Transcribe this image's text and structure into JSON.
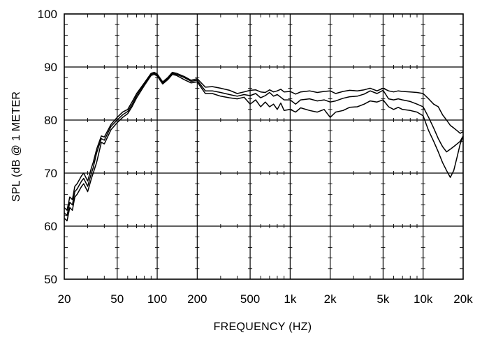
{
  "chart_data": {
    "type": "line",
    "title": "",
    "xlabel": "FREQUENCY  (HZ)",
    "ylabel": "SPL (dB @ 1 METER",
    "xscale": "log",
    "xlim": [
      20,
      20000
    ],
    "ylim": [
      50,
      100
    ],
    "grid": true,
    "legend": "none",
    "line_color": "#000000",
    "x_ticks": [
      {
        "value": 20,
        "label": "20"
      },
      {
        "value": 50,
        "label": "50"
      },
      {
        "value": 100,
        "label": "100"
      },
      {
        "value": 200,
        "label": "200"
      },
      {
        "value": 500,
        "label": "500"
      },
      {
        "value": 1000,
        "label": "1k"
      },
      {
        "value": 2000,
        "label": "2k"
      },
      {
        "value": 5000,
        "label": "5k"
      },
      {
        "value": 10000,
        "label": "10k"
      },
      {
        "value": 20000,
        "label": "20k"
      }
    ],
    "y_ticks": [
      {
        "value": 50,
        "label": "50"
      },
      {
        "value": 60,
        "label": "60"
      },
      {
        "value": 70,
        "label": "70"
      },
      {
        "value": 80,
        "label": "80"
      },
      {
        "value": 90,
        "label": "90"
      },
      {
        "value": 100,
        "label": "100"
      }
    ],
    "series": [
      {
        "x": [
          20,
          21,
          22,
          23,
          24,
          25,
          27,
          28,
          30,
          32,
          33,
          35,
          38,
          40,
          45,
          50,
          55,
          60,
          65,
          70,
          80,
          90,
          95,
          100,
          110,
          120,
          130,
          140,
          160,
          180,
          200,
          230,
          260,
          300,
          350,
          400,
          450,
          500,
          550,
          600,
          650,
          700,
          750,
          800,
          850,
          900,
          1000,
          1100,
          1200,
          1400,
          1600,
          1800,
          2000,
          2200,
          2500,
          2800,
          3200,
          3600,
          4000,
          4500,
          5000,
          5500,
          6000,
          6500,
          7000,
          8000,
          9000,
          10000,
          11000,
          12000,
          13000,
          14000,
          15000,
          16000,
          17000,
          18000,
          19000,
          20000
        ],
        "values": [
          63.5,
          63,
          65.5,
          65,
          67.5,
          68,
          69.5,
          70,
          68.5,
          71,
          72,
          74.5,
          77,
          76.8,
          79.2,
          80.5,
          81.5,
          82,
          83.5,
          85,
          87,
          88.8,
          89,
          88.7,
          87.2,
          88,
          89,
          88.8,
          88.2,
          87.5,
          87.8,
          86.2,
          86.3,
          86,
          85.6,
          85,
          85.3,
          85.6,
          85.7,
          85.3,
          85.2,
          85.7,
          85.3,
          85.5,
          85.8,
          85.3,
          85.4,
          84.9,
          85.3,
          85.5,
          85.2,
          85.4,
          85.5,
          85,
          85.4,
          85.6,
          85.5,
          85.7,
          86,
          85.5,
          86,
          85.5,
          85.3,
          85.5,
          85.4,
          85.3,
          85.2,
          85,
          84,
          83,
          82.5,
          81,
          80,
          79,
          78.5,
          78,
          77.5,
          77.8
        ]
      },
      {
        "x": [
          20,
          21,
          22,
          23,
          24,
          25,
          27,
          28,
          30,
          32,
          33,
          35,
          38,
          40,
          45,
          50,
          55,
          60,
          65,
          70,
          80,
          90,
          95,
          100,
          110,
          120,
          130,
          140,
          160,
          180,
          200,
          230,
          260,
          300,
          350,
          400,
          450,
          500,
          550,
          600,
          650,
          700,
          750,
          800,
          850,
          900,
          1000,
          1100,
          1200,
          1400,
          1600,
          1800,
          2000,
          2200,
          2500,
          2800,
          3200,
          3600,
          4000,
          4500,
          5000,
          5500,
          6000,
          6500,
          7000,
          8000,
          9000,
          10000,
          11000,
          12000,
          13000,
          14000,
          15000,
          16000,
          17000,
          18000,
          19000,
          20000
        ],
        "values": [
          62.5,
          62,
          64.5,
          64,
          66.5,
          67,
          68.5,
          69,
          67.5,
          70,
          71,
          73.8,
          76.5,
          76.2,
          78.8,
          80,
          81,
          81.6,
          83,
          84.6,
          86.8,
          88.6,
          88.8,
          88.5,
          87,
          87.8,
          88.8,
          88.6,
          88,
          87.3,
          87.5,
          85.5,
          85.5,
          85.2,
          84.8,
          84.5,
          84.8,
          84.6,
          85,
          84.2,
          84.6,
          85.2,
          84.5,
          84.8,
          84.3,
          83.8,
          83.8,
          83,
          83.8,
          84,
          83.6,
          83.8,
          83.4,
          83.6,
          84.1,
          84.4,
          84.5,
          84.9,
          85.5,
          85,
          85.6,
          84,
          83.8,
          84,
          83.8,
          83.5,
          83,
          82.5,
          80.5,
          78.5,
          76.5,
          75,
          74,
          74.5,
          75,
          75.5,
          76,
          77
        ]
      },
      {
        "x": [
          20,
          21,
          22,
          23,
          24,
          25,
          27,
          28,
          30,
          32,
          33,
          35,
          38,
          40,
          45,
          50,
          55,
          60,
          65,
          70,
          80,
          90,
          95,
          100,
          110,
          120,
          130,
          140,
          160,
          180,
          200,
          230,
          260,
          300,
          350,
          400,
          450,
          500,
          550,
          600,
          650,
          700,
          750,
          800,
          850,
          900,
          1000,
          1100,
          1200,
          1400,
          1600,
          1800,
          2000,
          2200,
          2500,
          2800,
          3200,
          3600,
          4000,
          4500,
          5000,
          5500,
          6000,
          6500,
          7000,
          8000,
          9000,
          10000,
          11000,
          12000,
          13000,
          14000,
          15000,
          16000,
          17000,
          18000,
          19000,
          20000
        ],
        "values": [
          61.5,
          61,
          63.5,
          63,
          65.5,
          66,
          67.5,
          68,
          66.5,
          69,
          70,
          72,
          75.8,
          75.5,
          78.2,
          79.5,
          80.5,
          81.2,
          82.6,
          84.2,
          86.5,
          88.4,
          88.6,
          88.3,
          86.8,
          87.6,
          88.6,
          88.4,
          87.6,
          87,
          87.2,
          85,
          85,
          84.5,
          84.2,
          84,
          84.3,
          83,
          83.8,
          82.5,
          83.4,
          82.5,
          83,
          82,
          83.2,
          81.8,
          82,
          81.5,
          82.3,
          81.8,
          81.5,
          82,
          80.5,
          81.5,
          81.8,
          82.4,
          82.5,
          83,
          83.6,
          83.4,
          83.8,
          82.5,
          82,
          82.4,
          82,
          81.8,
          81.5,
          80.8,
          78,
          76,
          74,
          72,
          70.5,
          69.2,
          70.5,
          73,
          75.5,
          77
        ]
      }
    ]
  }
}
